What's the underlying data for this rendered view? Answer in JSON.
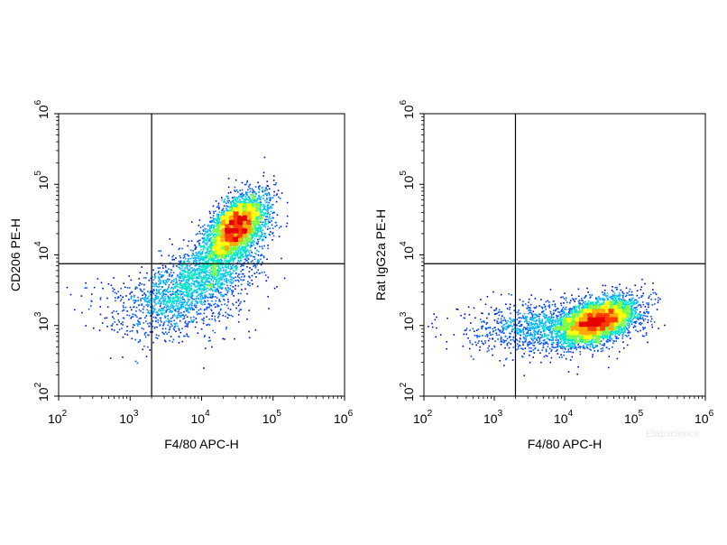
{
  "chart_data": [
    {
      "type": "scatter",
      "subtype": "flow-cytometry-density-dot-plot",
      "xlabel": "F4/80 APC-H",
      "ylabel": "CD206 PE-H",
      "xscale": "log",
      "yscale": "log",
      "xlim": [
        100,
        1000000
      ],
      "ylim": [
        100,
        1000000
      ],
      "xticks": [
        {
          "base": "10",
          "exp": "2"
        },
        {
          "base": "10",
          "exp": "3"
        },
        {
          "base": "10",
          "exp": "4"
        },
        {
          "base": "10",
          "exp": "5"
        },
        {
          "base": "10",
          "exp": "6"
        }
      ],
      "yticks": [
        {
          "base": "10",
          "exp": "2"
        },
        {
          "base": "10",
          "exp": "3"
        },
        {
          "base": "10",
          "exp": "4"
        },
        {
          "base": "10",
          "exp": "5"
        },
        {
          "base": "10",
          "exp": "6"
        }
      ],
      "gate": {
        "x": 2000,
        "y": 7500
      },
      "populations": [
        {
          "center": [
            30000,
            25000
          ],
          "spread": [
            0.28,
            0.28
          ],
          "rotation_deg": 50,
          "count": 3600
        },
        {
          "center": [
            9000,
            4500
          ],
          "spread": [
            0.45,
            0.42
          ],
          "rotation_deg": 30,
          "count": 1700
        },
        {
          "center": [
            3000,
            1800
          ],
          "spread": [
            0.55,
            0.45
          ],
          "rotation_deg": 0,
          "count": 500
        }
      ],
      "peak_location": [
        30000,
        25000
      ],
      "density_colors": [
        "#0000c8",
        "#0050ff",
        "#00b4ff",
        "#00e6c8",
        "#78ff3c",
        "#ffff00",
        "#ffaa00",
        "#ff3c00",
        "#e60000"
      ]
    },
    {
      "type": "scatter",
      "subtype": "flow-cytometry-density-dot-plot",
      "xlabel": "F4/80 APC-H",
      "ylabel": "Rat IgG2a PE-H",
      "xscale": "log",
      "yscale": "log",
      "xlim": [
        100,
        1000000
      ],
      "ylim": [
        100,
        1000000
      ],
      "xticks": [
        {
          "base": "10",
          "exp": "2"
        },
        {
          "base": "10",
          "exp": "3"
        },
        {
          "base": "10",
          "exp": "4"
        },
        {
          "base": "10",
          "exp": "5"
        },
        {
          "base": "10",
          "exp": "6"
        }
      ],
      "yticks": [
        {
          "base": "10",
          "exp": "2"
        },
        {
          "base": "10",
          "exp": "3"
        },
        {
          "base": "10",
          "exp": "4"
        },
        {
          "base": "10",
          "exp": "5"
        },
        {
          "base": "10",
          "exp": "6"
        }
      ],
      "gate": {
        "x": 2000,
        "y": 7500
      },
      "populations": [
        {
          "center": [
            30000,
            1200
          ],
          "spread": [
            0.28,
            0.25
          ],
          "rotation_deg": 20,
          "count": 3800
        },
        {
          "center": [
            8000,
            1000
          ],
          "spread": [
            0.5,
            0.32
          ],
          "rotation_deg": 5,
          "count": 1100
        },
        {
          "center": [
            2500,
            900
          ],
          "spread": [
            0.55,
            0.35
          ],
          "rotation_deg": 0,
          "count": 300
        }
      ],
      "peak_location": [
        30000,
        1200
      ],
      "density_colors": [
        "#0000c8",
        "#0050ff",
        "#00b4ff",
        "#00e6c8",
        "#78ff3c",
        "#ffff00",
        "#ffaa00",
        "#ff3c00",
        "#e60000"
      ]
    }
  ],
  "watermark": "Elabscience"
}
